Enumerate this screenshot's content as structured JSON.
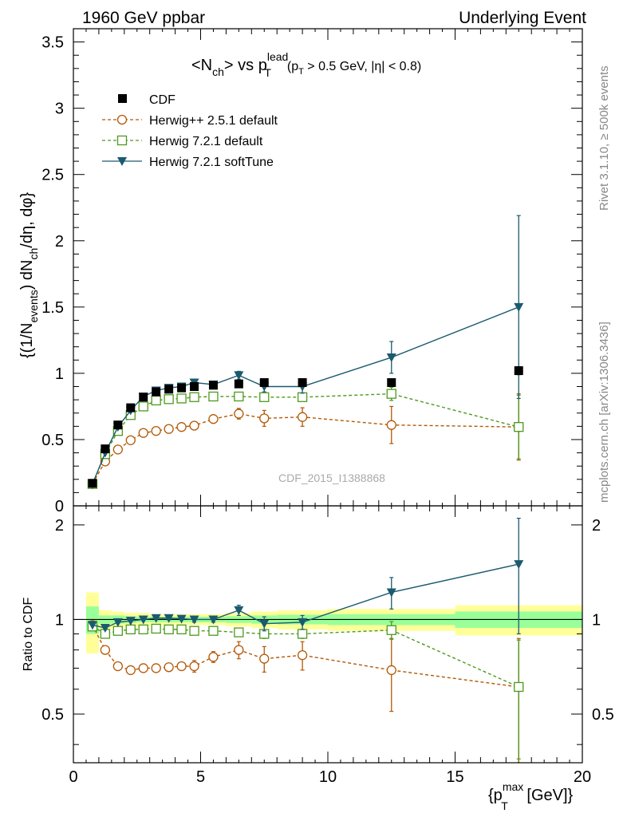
{
  "header": {
    "left": "1960 GeV ppbar",
    "right": "Underlying Event"
  },
  "side_labels": {
    "rivet": "Rivet 3.1.10, ≥ 500k events",
    "mcplots": "mcplots.cern.ch [arXiv:1306.3436]"
  },
  "watermark": "CDF_2015_I1388868",
  "chart_data": [
    {
      "type": "line",
      "panel": "main",
      "title_main": "<N",
      "title_sub": "ch",
      "title_vs": "> vs p",
      "title_sup": "lead",
      "title_T": "T",
      "title_cut_a": "(p",
      "title_cut_T": "T",
      "title_cut_b": " > 0.5 GeV, |η| < 0.8)",
      "ylabel": "{(1/N_events) dN_ch/dη, dφ}",
      "ylabel_parts": {
        "a": "{(1/N",
        "b": "events",
        "c": ") dN",
        "d": "ch",
        "e": "/dη, dφ}"
      },
      "xlim": [
        0,
        20
      ],
      "ylim": [
        0,
        3.6
      ],
      "yticks": [
        0,
        0.5,
        1,
        1.5,
        2,
        2.5,
        3,
        3.5
      ],
      "ytick_labels": [
        "0",
        "0.5",
        "1",
        "1.5",
        "2",
        "2.5",
        "3",
        "3.5"
      ],
      "legend_position": "top-left",
      "series": [
        {
          "name": "CDF",
          "style": "marker-square-filled",
          "color": "#000000",
          "x": [
            0.75,
            1.25,
            1.75,
            2.25,
            2.75,
            3.25,
            3.75,
            4.25,
            4.75,
            5.5,
            6.5,
            7.5,
            9.0,
            12.5,
            17.5
          ],
          "y": [
            0.17,
            0.43,
            0.61,
            0.74,
            0.82,
            0.86,
            0.88,
            0.89,
            0.9,
            0.91,
            0.92,
            0.93,
            0.93,
            0.93,
            1.02
          ],
          "err": [
            0.01,
            0.01,
            0.01,
            0.01,
            0.01,
            0.01,
            0.01,
            0.01,
            0.01,
            0.01,
            0.01,
            0.01,
            0.02,
            0.01,
            0.03
          ]
        },
        {
          "name": "Herwig++ 2.5.1 default",
          "style": "dashed-open-circle",
          "color": "#b35806",
          "x": [
            0.75,
            1.25,
            1.75,
            2.25,
            2.75,
            3.25,
            3.75,
            4.25,
            4.75,
            5.5,
            6.5,
            7.5,
            9.0,
            12.5,
            17.5
          ],
          "y": [
            0.165,
            0.335,
            0.425,
            0.495,
            0.55,
            0.565,
            0.58,
            0.595,
            0.605,
            0.655,
            0.695,
            0.66,
            0.67,
            0.61,
            0.595
          ],
          "err": [
            0.01,
            0.02,
            0.02,
            0.02,
            0.02,
            0.02,
            0.02,
            0.02,
            0.03,
            0.03,
            0.04,
            0.06,
            0.07,
            0.14,
            0.25
          ]
        },
        {
          "name": "Herwig 7.2.1 default",
          "style": "dashed-open-square",
          "color": "#4d9a1d",
          "x": [
            0.75,
            1.25,
            1.75,
            2.25,
            2.75,
            3.25,
            3.75,
            4.25,
            4.75,
            5.5,
            6.5,
            7.5,
            9.0,
            12.5,
            17.5
          ],
          "y": [
            0.165,
            0.39,
            0.565,
            0.685,
            0.75,
            0.795,
            0.805,
            0.81,
            0.82,
            0.825,
            0.825,
            0.82,
            0.82,
            0.845,
            0.595
          ],
          "err": [
            0.01,
            0.01,
            0.01,
            0.01,
            0.01,
            0.01,
            0.01,
            0.01,
            0.01,
            0.01,
            0.02,
            0.03,
            0.03,
            0.05,
            0.24
          ]
        },
        {
          "name": "Herwig 7.2.1 softTune",
          "style": "solid-filled-triangle-down",
          "color": "#1b5a6e",
          "x": [
            0.75,
            1.25,
            1.75,
            2.25,
            2.75,
            3.25,
            3.75,
            4.25,
            4.75,
            5.5,
            6.5,
            7.5,
            9.0,
            12.5,
            17.5
          ],
          "y": [
            0.165,
            0.4,
            0.595,
            0.72,
            0.825,
            0.87,
            0.89,
            0.9,
            0.93,
            0.915,
            0.985,
            0.9,
            0.9,
            1.12,
            1.5
          ],
          "err": [
            0.01,
            0.01,
            0.01,
            0.01,
            0.01,
            0.01,
            0.01,
            0.01,
            0.02,
            0.02,
            0.03,
            0.04,
            0.05,
            0.12,
            0.69
          ]
        }
      ]
    },
    {
      "type": "line",
      "panel": "ratio",
      "ylabel": "Ratio to CDF",
      "xlabel_parts": {
        "a": "{p",
        "sup": "max",
        "sub": "T",
        "b": " [GeV]}"
      },
      "xlim": [
        0,
        20
      ],
      "ylim": [
        0.35,
        2.3
      ],
      "xticks": [
        0,
        5,
        10,
        15,
        20
      ],
      "xtick_labels": [
        "0",
        "5",
        "10",
        "15",
        "20"
      ],
      "yticks": [
        0.5,
        1,
        2
      ],
      "ytick_labels": [
        "0.5",
        "1",
        "2"
      ],
      "bands": {
        "bin_edges": [
          0.5,
          1.0,
          1.5,
          2.0,
          2.5,
          3.0,
          3.5,
          4.0,
          4.5,
          5.0,
          6.0,
          7.0,
          8.0,
          10.0,
          15.0,
          20.0
        ],
        "yellow_halfwidth": [
          0.22,
          0.07,
          0.06,
          0.05,
          0.05,
          0.04,
          0.04,
          0.04,
          0.04,
          0.04,
          0.05,
          0.06,
          0.07,
          0.08,
          0.11
        ],
        "green_halfwidth": [
          0.1,
          0.03,
          0.03,
          0.025,
          0.02,
          0.02,
          0.02,
          0.02,
          0.02,
          0.02,
          0.025,
          0.03,
          0.035,
          0.04,
          0.06
        ],
        "yellow_color": "#ffff99",
        "green_color": "#99ff99"
      },
      "series": [
        {
          "name": "Herwig++ 2.5.1 default",
          "style": "dashed-open-circle",
          "color": "#b35806",
          "x": [
            0.75,
            1.25,
            1.75,
            2.25,
            2.75,
            3.25,
            3.75,
            4.25,
            4.75,
            5.5,
            6.5,
            7.5,
            9.0,
            12.5,
            17.5
          ],
          "y": [
            0.96,
            0.8,
            0.71,
            0.69,
            0.7,
            0.7,
            0.705,
            0.71,
            0.71,
            0.76,
            0.8,
            0.75,
            0.77,
            0.69,
            0.61
          ],
          "err": [
            0.02,
            0.02,
            0.02,
            0.02,
            0.02,
            0.02,
            0.02,
            0.02,
            0.03,
            0.03,
            0.05,
            0.07,
            0.08,
            0.18,
            0.26
          ]
        },
        {
          "name": "Herwig 7.2.1 default",
          "style": "dashed-open-square",
          "color": "#4d9a1d",
          "x": [
            0.75,
            1.25,
            1.75,
            2.25,
            2.75,
            3.25,
            3.75,
            4.25,
            4.75,
            5.5,
            6.5,
            7.5,
            9.0,
            12.5,
            17.5
          ],
          "y": [
            0.95,
            0.9,
            0.92,
            0.93,
            0.93,
            0.935,
            0.93,
            0.93,
            0.92,
            0.92,
            0.91,
            0.9,
            0.9,
            0.925,
            0.61
          ],
          "err": [
            0.01,
            0.01,
            0.01,
            0.01,
            0.01,
            0.01,
            0.01,
            0.01,
            0.01,
            0.01,
            0.02,
            0.03,
            0.03,
            0.06,
            0.25
          ]
        },
        {
          "name": "Herwig 7.2.1 softTune",
          "style": "solid-filled-triangle-down",
          "color": "#1b5a6e",
          "x": [
            0.75,
            1.25,
            1.75,
            2.25,
            2.75,
            3.25,
            3.75,
            4.25,
            4.75,
            5.5,
            6.5,
            7.5,
            9.0,
            12.5,
            17.5
          ],
          "y": [
            0.96,
            0.94,
            0.98,
            0.99,
            1.0,
            1.01,
            1.01,
            1.005,
            1.0,
            1.0,
            1.07,
            0.97,
            0.98,
            1.22,
            1.5
          ],
          "err": [
            0.01,
            0.01,
            0.01,
            0.01,
            0.01,
            0.01,
            0.01,
            0.01,
            0.02,
            0.02,
            0.04,
            0.05,
            0.05,
            0.14,
            0.6
          ]
        }
      ]
    }
  ]
}
